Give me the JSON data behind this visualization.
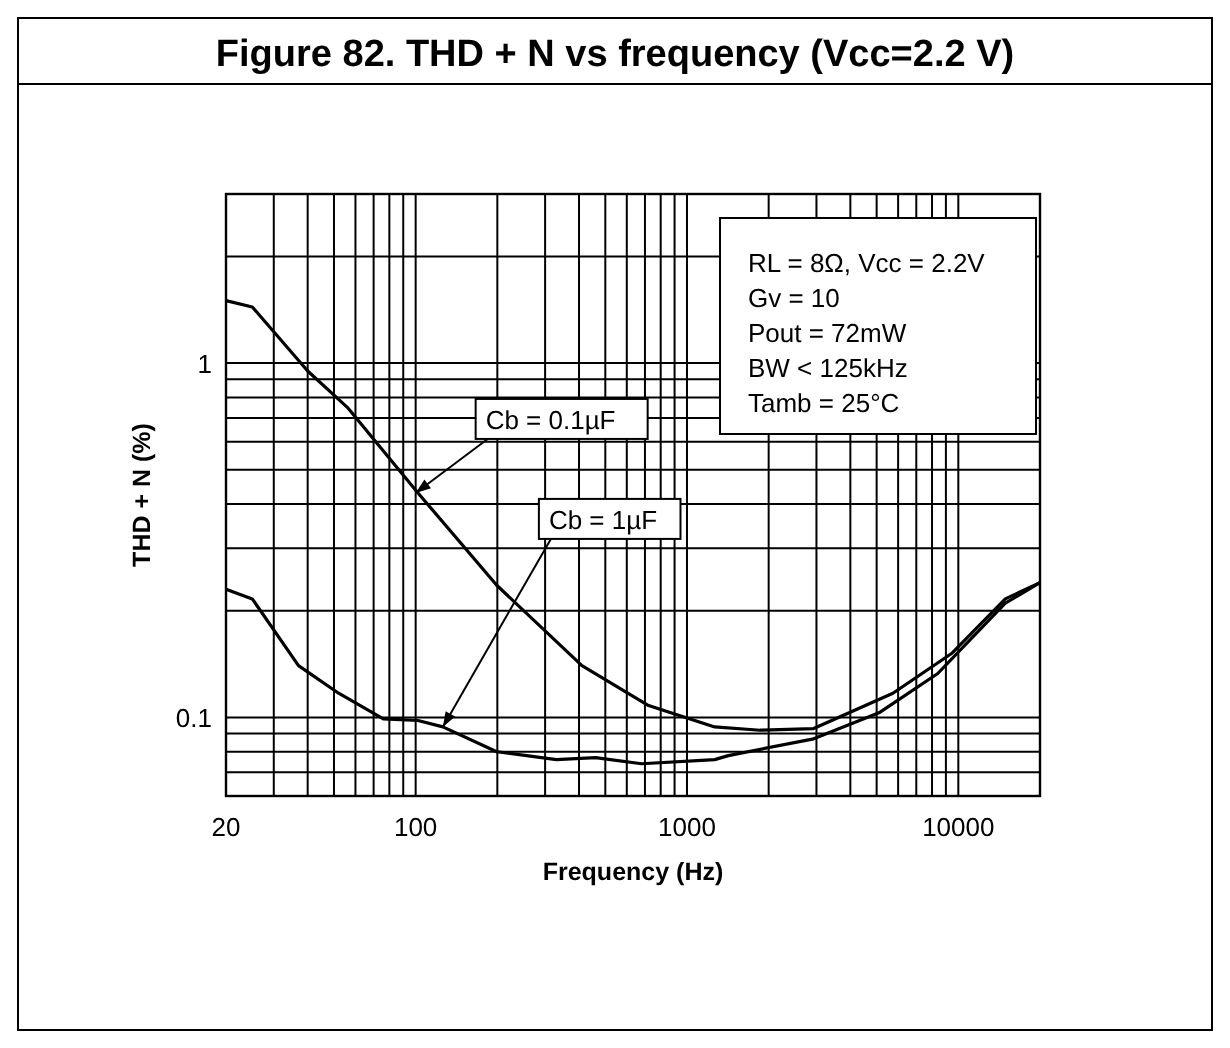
{
  "chart_data": {
    "type": "line",
    "title": "Figure 82. THD + N vs frequency (Vcc=2.2 V)",
    "xlabel": "Frequency (Hz)",
    "ylabel": "THD + N (%)",
    "log": "xy",
    "grid": true,
    "marker": "none",
    "line_style": "solid",
    "xlim": [
      20,
      20000
    ],
    "ylim": [
      0.06,
      3
    ],
    "xticks": [
      20,
      {
        "value": 30,
        "label": null
      },
      {
        "value": 40,
        "label": null
      },
      {
        "value": 50,
        "label": null
      },
      {
        "value": 60,
        "label": null
      },
      {
        "value": 70,
        "label": null
      },
      {
        "value": 80,
        "label": null
      },
      {
        "value": 90,
        "label": null
      },
      100,
      {
        "value": 200,
        "label": null
      },
      {
        "value": 300,
        "label": null
      },
      {
        "value": 400,
        "label": null
      },
      {
        "value": 500,
        "label": null
      },
      {
        "value": 600,
        "label": null
      },
      {
        "value": 700,
        "label": null
      },
      {
        "value": 800,
        "label": null
      },
      {
        "value": 900,
        "label": null
      },
      1000,
      {
        "value": 2000,
        "label": null
      },
      {
        "value": 3000,
        "label": null
      },
      {
        "value": 4000,
        "label": null
      },
      {
        "value": 5000,
        "label": null
      },
      {
        "value": 6000,
        "label": null
      },
      {
        "value": 7000,
        "label": null
      },
      {
        "value": 8000,
        "label": null
      },
      {
        "value": 9000,
        "label": null
      },
      10000
    ],
    "yticks": [
      {
        "value": 0.07,
        "label": null
      },
      {
        "value": 0.08,
        "label": null
      },
      {
        "value": 0.09,
        "label": null
      },
      0.1,
      {
        "value": 0.2,
        "label": null
      },
      {
        "value": 0.3,
        "label": null
      },
      {
        "value": 0.4,
        "label": null
      },
      {
        "value": 0.5,
        "label": null
      },
      {
        "value": 0.6,
        "label": null
      },
      {
        "value": 0.7,
        "label": null
      },
      {
        "value": 0.8,
        "label": null
      },
      {
        "value": 0.9,
        "label": null
      },
      1,
      {
        "value": 2,
        "label": null
      }
    ],
    "series": [
      {
        "color": "#000000",
        "x": [
          20,
          25,
          40,
          56,
          102,
          199,
          410,
          722,
          1265,
          1860,
          2930,
          5740,
          9500,
          14900,
          20000
        ],
        "values": [
          1.5,
          1.44,
          0.95,
          0.75,
          0.43,
          0.236,
          0.14,
          0.108,
          0.094,
          0.092,
          0.093,
          0.117,
          0.152,
          0.216,
          0.24
        ]
      },
      {
        "color": "#000000",
        "x": [
          20,
          25,
          37,
          52,
          76,
          102,
          126,
          199,
          330,
          460,
          680,
          1265,
          1420,
          2930,
          5100,
          8400,
          14900,
          20000
        ],
        "values": [
          0.23,
          0.216,
          0.14,
          0.117,
          0.099,
          0.098,
          0.094,
          0.08,
          0.076,
          0.077,
          0.074,
          0.076,
          0.078,
          0.087,
          0.103,
          0.133,
          0.21,
          0.24
        ]
      }
    ],
    "annotations": [
      {
        "text": "Cb = 0.1µF",
        "x": 100,
        "y": 0.43
      },
      {
        "text": "Cb = 1µF",
        "x": 126,
        "y": 0.094
      },
      "RL = 8Ω, Vcc = 2.2V",
      "Gv = 10",
      "Pout = 72mW",
      "BW < 125kHz",
      "Tamb = 25°C"
    ]
  }
}
